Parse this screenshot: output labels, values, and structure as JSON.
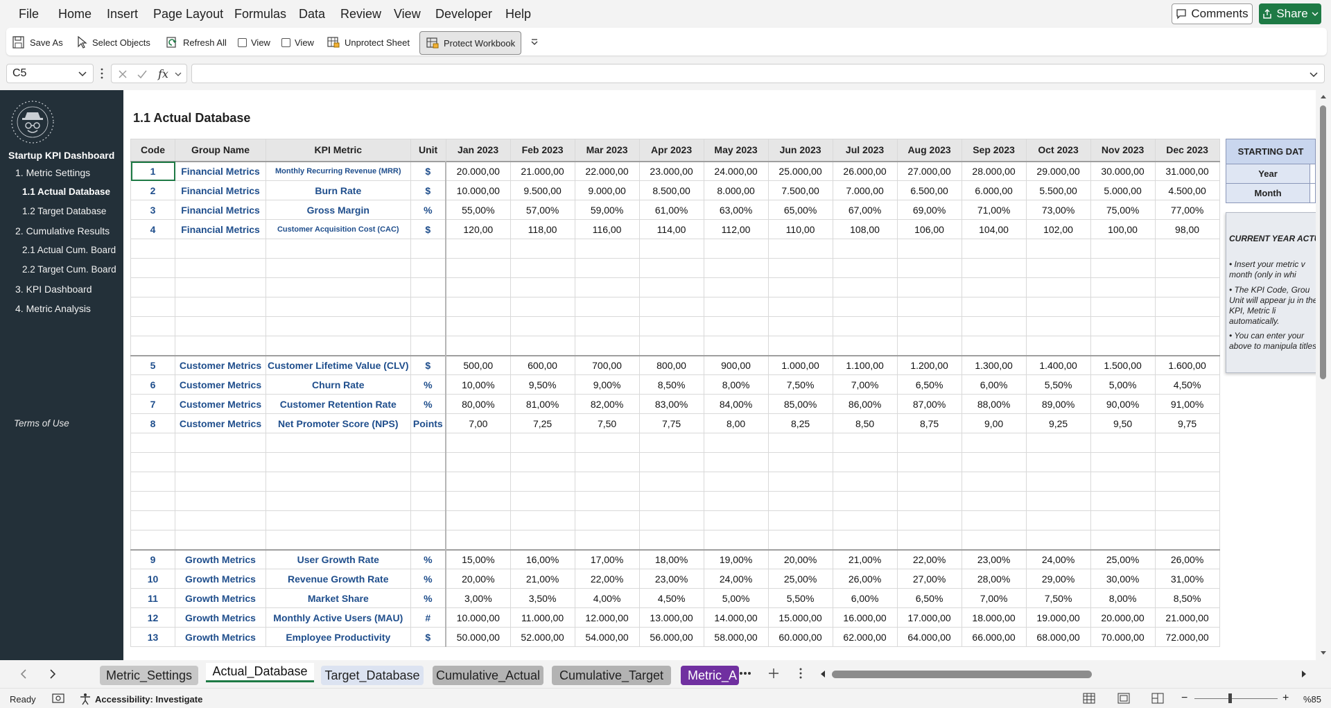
{
  "menu": [
    "File",
    "Home",
    "Insert",
    "Page Layout",
    "Formulas",
    "Data",
    "Review",
    "View",
    "Developer",
    "Help"
  ],
  "comments_label": "Comments",
  "share_label": "Share",
  "ribbon": {
    "save_as": "Save As",
    "select_objects": "Select Objects",
    "refresh_all": "Refresh All",
    "view1": "View",
    "view2": "View",
    "unprotect_sheet": "Unprotect Sheet",
    "protect_workbook": "Protect Workbook"
  },
  "name_box": "C5",
  "formula_value": "",
  "sidebar": {
    "title": "Startup KPI Dashboard",
    "nav": [
      {
        "label": "1. Metric Settings",
        "level": 0
      },
      {
        "label": "1.1 Actual Database",
        "level": 1,
        "active": true
      },
      {
        "label": "1.2 Target Database",
        "level": 1
      },
      {
        "label": "2. Cumulative Results",
        "level": 0
      },
      {
        "label": "2.1 Actual Cum. Board",
        "level": 1
      },
      {
        "label": "2.2 Target Cum. Board",
        "level": 1
      },
      {
        "label": "3. KPI Dashboard",
        "level": 0
      },
      {
        "label": "4. Metric Analysis",
        "level": 0
      }
    ],
    "terms": "Terms of Use"
  },
  "sheet_title": "1.1 Actual Database",
  "columns": [
    "Code",
    "Group Name",
    "KPI Metric",
    "Unit",
    "Jan 2023",
    "Feb 2023",
    "Mar 2023",
    "Apr 2023",
    "May 2023",
    "Jun 2023",
    "Jul 2023",
    "Aug 2023",
    "Sep 2023",
    "Oct 2023",
    "Nov 2023",
    "Dec 2023"
  ],
  "rows": [
    {
      "code": "1",
      "group": "Financial Metrics",
      "metric": "Monthly Recurring Revenue (MRR)",
      "small": true,
      "unit": "$",
      "values": [
        "20.000,00",
        "21.000,00",
        "22.000,00",
        "23.000,00",
        "24.000,00",
        "25.000,00",
        "26.000,00",
        "27.000,00",
        "28.000,00",
        "29.000,00",
        "30.000,00",
        "31.000,00"
      ]
    },
    {
      "code": "2",
      "group": "Financial Metrics",
      "metric": "Burn Rate",
      "unit": "$",
      "values": [
        "10.000,00",
        "9.500,00",
        "9.000,00",
        "8.500,00",
        "8.000,00",
        "7.500,00",
        "7.000,00",
        "6.500,00",
        "6.000,00",
        "5.500,00",
        "5.000,00",
        "4.500,00"
      ]
    },
    {
      "code": "3",
      "group": "Financial Metrics",
      "metric": "Gross Margin",
      "unit": "%",
      "values": [
        "55,00%",
        "57,00%",
        "59,00%",
        "61,00%",
        "63,00%",
        "65,00%",
        "67,00%",
        "69,00%",
        "71,00%",
        "73,00%",
        "75,00%",
        "77,00%"
      ]
    },
    {
      "code": "4",
      "group": "Financial Metrics",
      "metric": "Customer Acquisition Cost (CAC)",
      "small": true,
      "unit": "$",
      "values": [
        "120,00",
        "118,00",
        "116,00",
        "114,00",
        "112,00",
        "110,00",
        "108,00",
        "106,00",
        "104,00",
        "102,00",
        "100,00",
        "98,00"
      ]
    },
    {
      "blank": true
    },
    {
      "blank": true
    },
    {
      "blank": true
    },
    {
      "blank": true
    },
    {
      "blank": true
    },
    {
      "blank": true
    },
    {
      "code": "5",
      "group": "Customer Metrics",
      "metric": "Customer Lifetime Value (CLV)",
      "unit": "$",
      "divider": true,
      "values": [
        "500,00",
        "600,00",
        "700,00",
        "800,00",
        "900,00",
        "1.000,00",
        "1.100,00",
        "1.200,00",
        "1.300,00",
        "1.400,00",
        "1.500,00",
        "1.600,00"
      ]
    },
    {
      "code": "6",
      "group": "Customer Metrics",
      "metric": "Churn Rate",
      "unit": "%",
      "values": [
        "10,00%",
        "9,50%",
        "9,00%",
        "8,50%",
        "8,00%",
        "7,50%",
        "7,00%",
        "6,50%",
        "6,00%",
        "5,50%",
        "5,00%",
        "4,50%"
      ]
    },
    {
      "code": "7",
      "group": "Customer Metrics",
      "metric": "Customer Retention Rate",
      "unit": "%",
      "values": [
        "80,00%",
        "81,00%",
        "82,00%",
        "83,00%",
        "84,00%",
        "85,00%",
        "86,00%",
        "87,00%",
        "88,00%",
        "89,00%",
        "90,00%",
        "91,00%"
      ]
    },
    {
      "code": "8",
      "group": "Customer Metrics",
      "metric": "Net Promoter Score (NPS)",
      "unit": "Points",
      "values": [
        "7,00",
        "7,25",
        "7,50",
        "7,75",
        "8,00",
        "8,25",
        "8,50",
        "8,75",
        "9,00",
        "9,25",
        "9,50",
        "9,75"
      ]
    },
    {
      "blank": true
    },
    {
      "blank": true
    },
    {
      "blank": true
    },
    {
      "blank": true
    },
    {
      "blank": true
    },
    {
      "blank": true
    },
    {
      "code": "9",
      "group": "Growth Metrics",
      "metric": "User Growth Rate",
      "unit": "%",
      "divider": true,
      "values": [
        "15,00%",
        "16,00%",
        "17,00%",
        "18,00%",
        "19,00%",
        "20,00%",
        "21,00%",
        "22,00%",
        "23,00%",
        "24,00%",
        "25,00%",
        "26,00%"
      ]
    },
    {
      "code": "10",
      "group": "Growth Metrics",
      "metric": "Revenue Growth Rate",
      "unit": "%",
      "values": [
        "20,00%",
        "21,00%",
        "22,00%",
        "23,00%",
        "24,00%",
        "25,00%",
        "26,00%",
        "27,00%",
        "28,00%",
        "29,00%",
        "30,00%",
        "31,00%"
      ]
    },
    {
      "code": "11",
      "group": "Growth Metrics",
      "metric": "Market Share",
      "unit": "%",
      "values": [
        "3,00%",
        "3,50%",
        "4,00%",
        "4,50%",
        "5,00%",
        "5,50%",
        "6,00%",
        "6,50%",
        "7,00%",
        "7,50%",
        "8,00%",
        "8,50%"
      ]
    },
    {
      "code": "12",
      "group": "Growth Metrics",
      "metric": "Monthly Active Users (MAU)",
      "unit": "#",
      "values": [
        "10.000,00",
        "11.000,00",
        "12.000,00",
        "13.000,00",
        "14.000,00",
        "15.000,00",
        "16.000,00",
        "17.000,00",
        "18.000,00",
        "19.000,00",
        "20.000,00",
        "21.000,00"
      ]
    },
    {
      "code": "13",
      "group": "Growth Metrics",
      "metric": "Employee Productivity",
      "unit": "$",
      "values": [
        "50.000,00",
        "52.000,00",
        "54.000,00",
        "56.000,00",
        "58.000,00",
        "60.000,00",
        "62.000,00",
        "64.000,00",
        "66.000,00",
        "68.000,00",
        "70.000,00",
        "72.000,00"
      ]
    }
  ],
  "starting_date": {
    "header": "STARTING DAT",
    "year_label": "Year",
    "month_label": "Month"
  },
  "info_box": {
    "title": "CURRENT YEAR ACTU",
    "items": [
      "Insert your metric v month (only in whi",
      "The KPI Code, Grou Unit will appear ju in the KPI, Metric li automatically.",
      "You can enter your above to manipula titles."
    ]
  },
  "tabs": [
    {
      "label": "Metric_Settings",
      "bg": "#c7c7c7",
      "color": "#222"
    },
    {
      "label": "Actual_Database",
      "bg": "#ffffff",
      "color": "#111",
      "active": true
    },
    {
      "label": "Target_Database",
      "bg": "#dce3f1",
      "color": "#222"
    },
    {
      "label": "Cumulative_Actual",
      "bg": "#b3b3b3",
      "color": "#222"
    },
    {
      "label": "Cumulative_Target",
      "bg": "#b3b3b3",
      "color": "#222"
    },
    {
      "label": "Metric_A",
      "bg": "#7030a0",
      "color": "#fff"
    }
  ],
  "status": {
    "ready": "Ready",
    "accessibility": "Accessibility: Investigate",
    "zoom": "%85"
  }
}
